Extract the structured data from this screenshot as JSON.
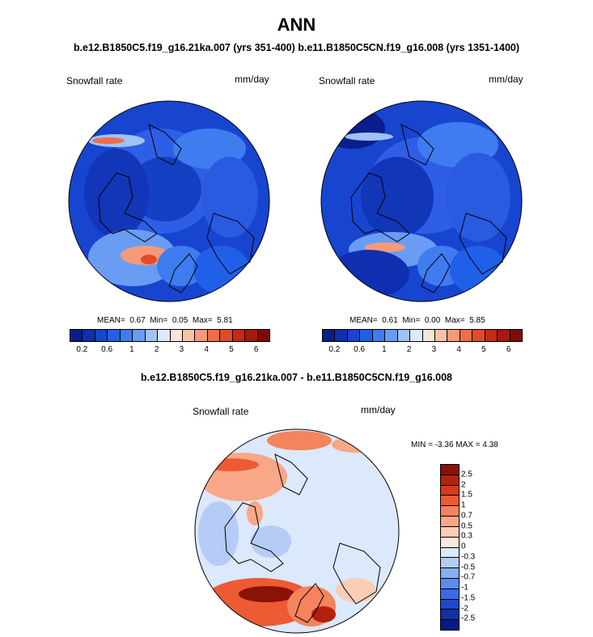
{
  "title": "ANN",
  "subtitle": "b.e12.B1850C5.f19_g16.21ka.007 (yrs 351-400) b.e11.B1850C5CN.f19_g16.008 (yrs 1351-1400)",
  "diff_title": "b.e12.B1850C5.f19_g16.21ka.007 - b.e11.B1850C5CN.f19_g16.008",
  "panels": [
    {
      "label": "Snowfall rate",
      "units": "mm/day",
      "mean_label": "MEAN=",
      "mean": "0.67",
      "min_label": "Min=",
      "min": "0.05",
      "max_label": "Max=",
      "max": "5.81"
    },
    {
      "label": "Snowfall rate",
      "units": "mm/day",
      "mean_label": "MEAN=",
      "mean": "0.61",
      "min_label": "Min=",
      "min": "0.00",
      "max_label": "Max=",
      "max": "5.85"
    }
  ],
  "diff_panel": {
    "label": "Snowfall rate",
    "units": "mm/day",
    "stats": "MIN =  -3.36 MAX =   4.38"
  },
  "colorbar_abs": {
    "ticks": [
      "0.2",
      "0.6",
      "1",
      "2",
      "3",
      "4",
      "5",
      "6"
    ],
    "colors": [
      "#0a1e8c",
      "#0f2fb0",
      "#1745d0",
      "#2060e8",
      "#3f7cf0",
      "#6a9cf4",
      "#9fc2f8",
      "#dce9fb",
      "#fbe3d6",
      "#f8c2a8",
      "#f59a78",
      "#ef6e48",
      "#e44a28",
      "#c82a14",
      "#a8180c",
      "#7e0c06"
    ]
  },
  "colorbar_diff": {
    "ticks": [
      "2.5",
      "2",
      "1.5",
      "1",
      "0.7",
      "0.5",
      "0.3",
      "0",
      "-0.3",
      "-0.5",
      "-0.7",
      "-1",
      "-1.5",
      "-2",
      "-2.5"
    ],
    "colors": [
      "#8a1208",
      "#b4200e",
      "#d83a1c",
      "#ee5a34",
      "#f5835e",
      "#f8a888",
      "#fbcdb6",
      "#fbe9e0",
      "#dce8fb",
      "#b4ccf6",
      "#8aaef2",
      "#5e8cec",
      "#3a6ae2",
      "#1e48cc",
      "#1030a8",
      "#0a1a84"
    ]
  },
  "colors": {
    "ocean_blue": "#1745d0",
    "land_outline": "#000000"
  }
}
